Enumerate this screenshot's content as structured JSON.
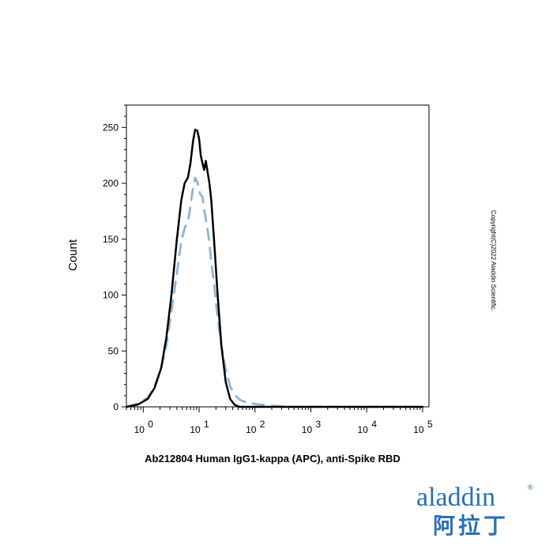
{
  "chart_data": {
    "type": "line",
    "title": "",
    "xlabel": "Ab212804 Human IgG1-kappa (APC), anti-Spike RBD",
    "ylabel": "Count",
    "x_scale": "log",
    "xlim": [
      0.5,
      130000
    ],
    "ylim": [
      0,
      270
    ],
    "y_ticks": [
      0,
      50,
      100,
      150,
      200,
      250
    ],
    "y_tick_labels": [
      "0",
      "50",
      "100",
      "150",
      "200",
      "250"
    ],
    "x_ticks": [
      1,
      10,
      100,
      1000,
      10000,
      100000
    ],
    "x_tick_labels": [
      {
        "base": "10",
        "exp": "0"
      },
      {
        "base": "10",
        "exp": "1"
      },
      {
        "base": "10",
        "exp": "2"
      },
      {
        "base": "10",
        "exp": "3"
      },
      {
        "base": "10",
        "exp": "4"
      },
      {
        "base": "10",
        "exp": "5"
      }
    ],
    "grid": false,
    "legend": "none",
    "series": [
      {
        "style": "solid",
        "color": "#000000",
        "x": [
          0.5,
          0.8,
          1.2,
          1.6,
          2.1,
          2.6,
          3.2,
          4.0,
          4.8,
          5.5,
          6.3,
          7.0,
          7.8,
          8.5,
          9.3,
          10.0,
          10.7,
          11.5,
          12.3,
          13.2,
          14.2,
          15.3,
          16.5,
          18.5,
          21.5,
          25.0,
          30.0,
          36.0,
          43.0,
          52.0,
          62.0,
          75.0,
          100.0,
          1000.0,
          10000.0,
          100000.0
        ],
        "y": [
          0,
          2,
          7,
          17,
          35,
          62,
          100,
          150,
          185,
          200,
          205,
          218,
          238,
          248,
          247,
          240,
          225,
          218,
          212,
          220,
          210,
          200,
          185,
          150,
          100,
          55,
          22,
          7,
          2,
          0,
          0,
          0,
          0,
          0,
          0,
          0
        ]
      },
      {
        "style": "dashed",
        "color": "#8cb4d8",
        "x": [
          0.5,
          0.8,
          1.2,
          1.6,
          2.1,
          2.6,
          3.2,
          4.0,
          4.8,
          5.5,
          6.3,
          7.0,
          7.8,
          8.5,
          9.5,
          10.5,
          11.5,
          12.5,
          13.5,
          15.0,
          16.5,
          18.5,
          21.5,
          25.0,
          30.0,
          36.0,
          45.0,
          55.0,
          70.0,
          90.0,
          120.0,
          200.0,
          400.0,
          1000.0,
          10000.0,
          100000.0
        ],
        "y": [
          0,
          3,
          8,
          18,
          35,
          55,
          85,
          120,
          148,
          160,
          165,
          180,
          196,
          205,
          200,
          190,
          188,
          175,
          165,
          150,
          130,
          110,
          80,
          55,
          33,
          18,
          10,
          6,
          4,
          3,
          2,
          1,
          0,
          0,
          0,
          0
        ]
      }
    ]
  },
  "copyright": "Copyright(C)2022 Aladdin Scientific.",
  "logo": {
    "english": "aladdin",
    "chinese": "阿拉丁",
    "registered": "®",
    "color": "#2a6fb5",
    "accent_color": "#c9a227"
  }
}
